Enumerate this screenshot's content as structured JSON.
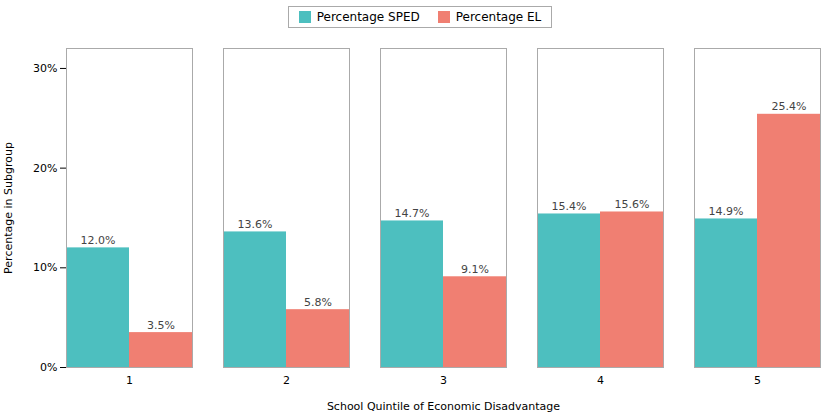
{
  "chart_data": {
    "type": "bar",
    "categories": [
      "1",
      "2",
      "3",
      "4",
      "5"
    ],
    "series": [
      {
        "name": "Percentage SPED",
        "color": "#4DBFBF",
        "values": [
          12.0,
          13.6,
          14.7,
          15.4,
          14.9
        ],
        "value_labels": [
          "12.0%",
          "13.6%",
          "14.7%",
          "15.4%",
          "14.9%"
        ]
      },
      {
        "name": "Percentage EL",
        "color": "#F07F72",
        "values": [
          3.5,
          5.8,
          9.1,
          15.6,
          25.4
        ],
        "value_labels": [
          "3.5%",
          "5.8%",
          "9.1%",
          "15.6%",
          "25.4%"
        ]
      }
    ],
    "xlabel": "School Quintile of Economic Disadvantage",
    "ylabel": "Percentage in Subgroup",
    "ylim": [
      0,
      32
    ],
    "yticks": [
      {
        "value": 0,
        "label": "0%"
      },
      {
        "value": 10,
        "label": "10%"
      },
      {
        "value": 20,
        "label": "20%"
      },
      {
        "value": 30,
        "label": "30%"
      }
    ],
    "grid": false,
    "legend": "top",
    "data_labels": true
  }
}
